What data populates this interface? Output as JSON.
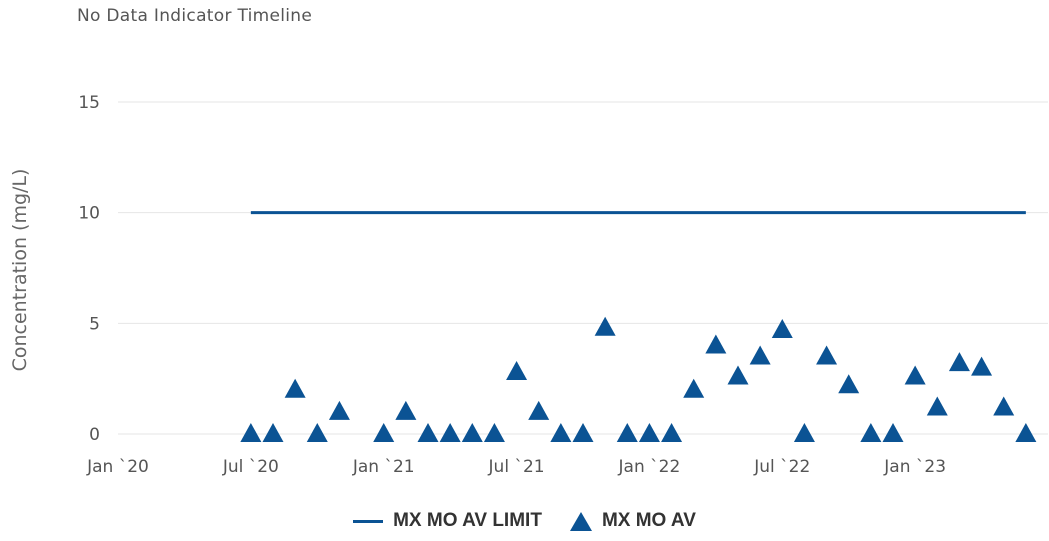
{
  "chart_data": {
    "type": "line",
    "title": "No Data Indicator Timeline",
    "ylabel": "Concentration (mg/L)",
    "xlabel": "",
    "ylim": [
      0,
      15
    ],
    "yticks": [
      0,
      5,
      10,
      15
    ],
    "x_tick_labels": [
      "Jan `20",
      "Jul `20",
      "Jan `21",
      "Jul `21",
      "Jan `22",
      "Jul `22",
      "Jan `23"
    ],
    "x_ticks": [
      "2020-01",
      "2020-07",
      "2021-01",
      "2021-07",
      "2022-01",
      "2022-07",
      "2023-01"
    ],
    "xlim": [
      "2020-01",
      "2023-07"
    ],
    "grid": true,
    "legend_position": "bottom",
    "colors": {
      "series": "#0b5394",
      "grid": "#e6e6e6"
    },
    "series": [
      {
        "name": "MX MO AV LIMIT",
        "type": "line",
        "x": [
          "2020-07",
          "2023-06"
        ],
        "y": [
          10,
          10
        ]
      },
      {
        "name": "MX MO AV",
        "type": "scatter",
        "marker": "triangle",
        "x": [
          "2020-07",
          "2020-08",
          "2020-09",
          "2020-10",
          "2020-11",
          "2021-01",
          "2021-02",
          "2021-03",
          "2021-04",
          "2021-05",
          "2021-06",
          "2021-07",
          "2021-08",
          "2021-09",
          "2021-10",
          "2021-11",
          "2021-12",
          "2022-01",
          "2022-02",
          "2022-03",
          "2022-04",
          "2022-05",
          "2022-06",
          "2022-07",
          "2022-08",
          "2022-09",
          "2022-10",
          "2022-11",
          "2022-12",
          "2023-01",
          "2023-02",
          "2023-03",
          "2023-04",
          "2023-05",
          "2023-06"
        ],
        "y": [
          0,
          0,
          2.0,
          0,
          1.0,
          0,
          1.0,
          0,
          0,
          0,
          0,
          2.8,
          1.0,
          0,
          0,
          4.8,
          0,
          0,
          0,
          2.0,
          4.0,
          2.6,
          3.5,
          4.7,
          0,
          3.5,
          2.2,
          0,
          0,
          2.6,
          1.2,
          3.2,
          3.0,
          1.2,
          0
        ]
      }
    ]
  }
}
